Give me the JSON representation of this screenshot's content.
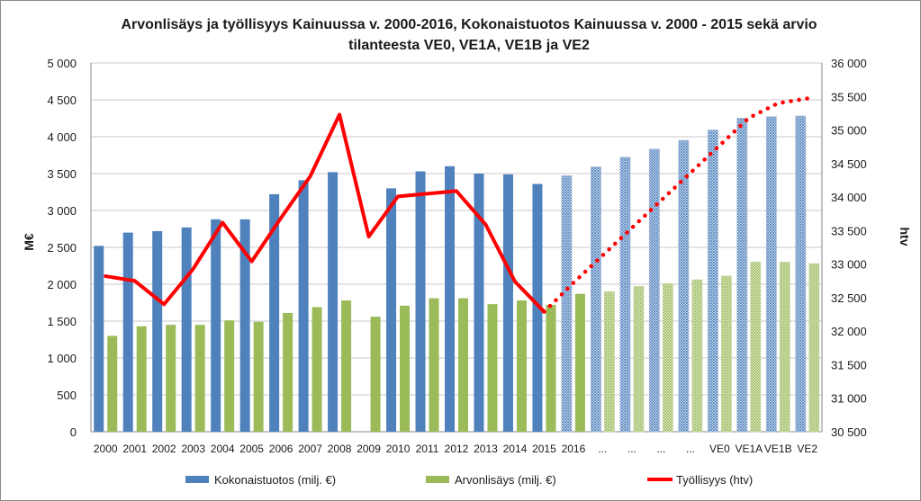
{
  "chart_data": {
    "type": "bar",
    "title_line1": "Arvonlisäys ja työllisyys Kainuussa v. 2000-2016, Kokonaistuotos Kainuussa v. 2000 - 2015 sekä arvio",
    "title_line2": "tilanteesta VE0, VE1A, VE1B ja VE2",
    "ylabel": "M€",
    "y2label": "htv",
    "ylim": [
      0,
      5000
    ],
    "y2lim": [
      30500,
      36000
    ],
    "y_ticks": [
      "0",
      "500",
      "1 000",
      "1 500",
      "2 000",
      "2 500",
      "3 000",
      "3 500",
      "4 000",
      "4 500",
      "5 000"
    ],
    "y2_ticks": [
      "30 500",
      "31 000",
      "31 500",
      "32 000",
      "32 500",
      "33 000",
      "33 500",
      "34 000",
      "34 500",
      "35 000",
      "35 500",
      "36 000"
    ],
    "grid": true,
    "legend_position": "bottom",
    "categories": [
      "2000",
      "2001",
      "2002",
      "2003",
      "2004",
      "2005",
      "2006",
      "2007",
      "2008",
      "2009",
      "2010",
      "2011",
      "2012",
      "2013",
      "2014",
      "2015",
      "2016",
      "...",
      "...",
      "...",
      "...",
      "VE0",
      "VE1A",
      "VE1B",
      "VE2"
    ],
    "series": [
      {
        "name": "Kokonaistuotos (milj. €)",
        "type": "bar",
        "axis": "left",
        "color": "#4f81bd",
        "values": [
          2520,
          2700,
          2720,
          2770,
          2880,
          2880,
          3220,
          3410,
          3520,
          null,
          3300,
          3530,
          3600,
          3500,
          3490,
          3360,
          3470,
          3590,
          3720,
          3830,
          3950,
          4090,
          4250,
          4270,
          4280
        ],
        "estimated_from_index": 16
      },
      {
        "name": "Arvonlisäys (milj. €)",
        "type": "bar",
        "axis": "left",
        "color": "#9bbb59",
        "values": [
          1300,
          1430,
          1450,
          1450,
          1510,
          1490,
          1610,
          1690,
          1780,
          1560,
          1710,
          1810,
          1810,
          1730,
          1780,
          1720,
          1870,
          1900,
          1970,
          2010,
          2060,
          2110,
          2300,
          2300,
          2280
        ],
        "estimated_from_index": 17
      },
      {
        "name": "Työllisyys (htv)",
        "type": "line",
        "axis": "right",
        "color": "#ff0000",
        "values": [
          32820,
          32750,
          32400,
          32930,
          33620,
          33040,
          33690,
          34310,
          35230,
          33410,
          34010,
          34050,
          34090,
          33590,
          32740,
          32290,
          32720,
          33130,
          33540,
          33950,
          34360,
          34770,
          35180,
          35400,
          35470
        ],
        "projected_from_index": 15
      }
    ]
  }
}
